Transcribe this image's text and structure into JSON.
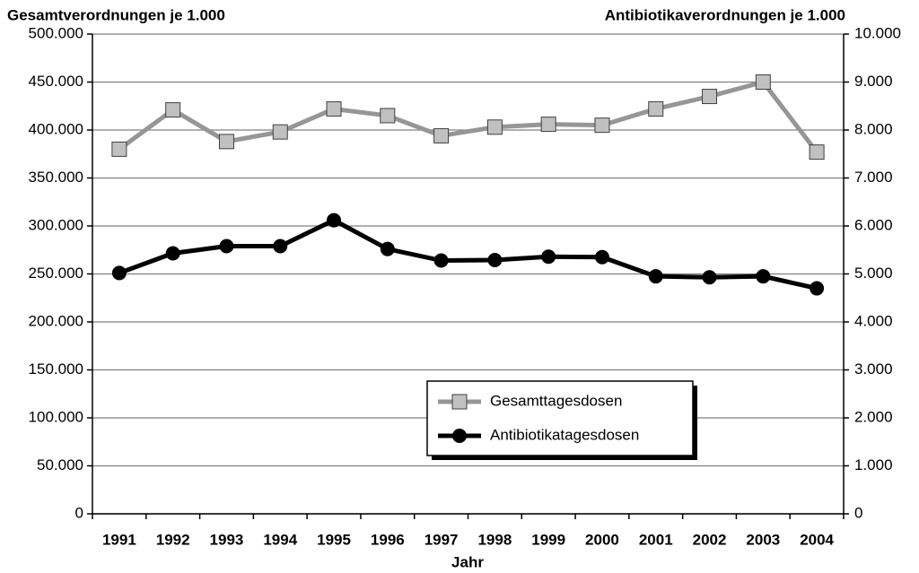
{
  "chart_data": {
    "type": "line",
    "y_label": "Gesamtverordnungen je 1.000",
    "y2_label": "Antibiotikaverordnungen je 1.000",
    "x_label": "Jahr",
    "categories": [
      "1991",
      "1992",
      "1993",
      "1994",
      "1995",
      "1996",
      "1997",
      "1998",
      "1999",
      "2000",
      "2001",
      "2002",
      "2003",
      "2004"
    ],
    "series": [
      {
        "name": "Gesamttagesdosen",
        "color": "#969696",
        "marker": "square",
        "values": [
          380000,
          421000,
          388000,
          398000,
          422000,
          415000,
          394000,
          403000,
          406000,
          405000,
          422000,
          435000,
          450000,
          377000
        ]
      },
      {
        "name": "Antibiotikatagesdosen",
        "color": "#000000",
        "marker": "circle",
        "axis": "y2",
        "values": [
          5020,
          5430,
          5580,
          5580,
          6120,
          5520,
          5280,
          5290,
          5360,
          5350,
          4950,
          4930,
          4950,
          4700
        ]
      }
    ],
    "ylim": [
      0,
      500000
    ],
    "yticks": [
      {
        "value": 0,
        "label": "0"
      },
      {
        "value": 50000,
        "label": "50.000"
      },
      {
        "value": 100000,
        "label": "100.000"
      },
      {
        "value": 150000,
        "label": "150.000"
      },
      {
        "value": 200000,
        "label": "200.000"
      },
      {
        "value": 250000,
        "label": "250.000"
      },
      {
        "value": 300000,
        "label": "300.000"
      },
      {
        "value": 350000,
        "label": "350.000"
      },
      {
        "value": 400000,
        "label": "400.000"
      },
      {
        "value": 450000,
        "label": "450.000"
      },
      {
        "value": 500000,
        "label": "500.000"
      }
    ],
    "y2lim": [
      0,
      10000
    ],
    "y2ticks": [
      {
        "value": 0,
        "label": "0"
      },
      {
        "value": 1000,
        "label": "1.000"
      },
      {
        "value": 2000,
        "label": "2.000"
      },
      {
        "value": 3000,
        "label": "3.000"
      },
      {
        "value": 4000,
        "label": "4.000"
      },
      {
        "value": 5000,
        "label": "5.000"
      },
      {
        "value": 6000,
        "label": "6.000"
      },
      {
        "value": 7000,
        "label": "7.000"
      },
      {
        "value": 8000,
        "label": "8.000"
      },
      {
        "value": 9000,
        "label": "9.000"
      },
      {
        "value": 10000,
        "label": "10.000"
      }
    ],
    "grid": true
  }
}
